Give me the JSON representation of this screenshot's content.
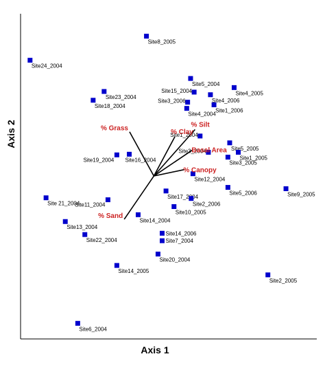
{
  "chart_data": {
    "type": "scatter",
    "xlabel": "Axis 1",
    "ylabel": "Axis 2",
    "xlim": [
      0,
      100
    ],
    "ylim": [
      0,
      100
    ],
    "grid": false,
    "colors": {
      "point": "#0000cc",
      "vector_label": "#cc2222",
      "axis": "#000000"
    },
    "points": [
      {
        "label": "Site8_2005",
        "x": 42.5,
        "y": 93.1
      },
      {
        "label": "Site24_2004",
        "x": 3.2,
        "y": 85.7
      },
      {
        "label": "Site5_2004",
        "x": 57.4,
        "y": 80.1
      },
      {
        "label": "Site4_2005",
        "x": 72.1,
        "y": 77.3
      },
      {
        "label": "Site23_2004",
        "x": 28.2,
        "y": 76.1
      },
      {
        "label": "Site15_2004",
        "x": 58.6,
        "y": 75.9
      },
      {
        "label": "Site4_2006",
        "x": 64.1,
        "y": 75.1
      },
      {
        "label": "Site18_2004",
        "x": 24.5,
        "y": 73.4
      },
      {
        "label": "Site3_2006",
        "x": 56.4,
        "y": 72.8
      },
      {
        "label": "Site1_2006",
        "x": 65.3,
        "y": 72.0
      },
      {
        "label": "Site4_2004",
        "x": 56.1,
        "y": 70.9
      },
      {
        "label": "Site1_2004",
        "x": 60.6,
        "y": 62.4
      },
      {
        "label": "Site5_2005",
        "x": 70.6,
        "y": 60.3
      },
      {
        "label": "Site3_2004",
        "x": 63.4,
        "y": 57.4
      },
      {
        "label": "Site1_2005",
        "x": 73.5,
        "y": 57.4
      },
      {
        "label": "Site3_2005",
        "x": 70.0,
        "y": 55.9
      },
      {
        "label": "Site19_2004",
        "x": 32.5,
        "y": 56.6
      },
      {
        "label": "Site16_2004",
        "x": 36.7,
        "y": 56.8
      },
      {
        "label": "Site12_2004",
        "x": 58.2,
        "y": 50.8
      },
      {
        "label": "Site17_2004",
        "x": 49.1,
        "y": 45.5
      },
      {
        "label": "Site5_2006",
        "x": 70.0,
        "y": 46.6
      },
      {
        "label": "Site9_2005",
        "x": 89.6,
        "y": 46.2
      },
      {
        "label": "Site2_2006",
        "x": 57.6,
        "y": 43.2
      },
      {
        "label": "Site 21_2004",
        "x": 8.6,
        "y": 43.4
      },
      {
        "label": "Site11_2004",
        "x": 29.5,
        "y": 42.8
      },
      {
        "label": "Site10_2005",
        "x": 51.8,
        "y": 40.7
      },
      {
        "label": "Site14_2004",
        "x": 39.7,
        "y": 38.2
      },
      {
        "label": "Site13_2004",
        "x": 15.1,
        "y": 36.1
      },
      {
        "label": "Site14_2006",
        "x": 47.8,
        "y": 32.5
      },
      {
        "label": "Site22_2004",
        "x": 21.7,
        "y": 32.1
      },
      {
        "label": "Site7_2004",
        "x": 47.8,
        "y": 30.2
      },
      {
        "label": "Site20_2004",
        "x": 46.4,
        "y": 26.1
      },
      {
        "label": "Site14_2005",
        "x": 32.5,
        "y": 22.6
      },
      {
        "label": "Site2_2005",
        "x": 83.5,
        "y": 19.7
      },
      {
        "label": "Site6_2004",
        "x": 19.3,
        "y": 4.8
      }
    ],
    "vectors": [
      {
        "label": "% Grass",
        "x": 36.8,
        "y": 63.7
      },
      {
        "label": "% Clay",
        "x": 52.1,
        "y": 62.2
      },
      {
        "label": "% Silt",
        "x": 58.9,
        "y": 64.4
      },
      {
        "label": "Basal Area",
        "x": 58.2,
        "y": 58.2
      },
      {
        "label": "% Canopy",
        "x": 55.4,
        "y": 52.1
      },
      {
        "label": "% Sand",
        "x": 35.0,
        "y": 36.8
      }
    ],
    "vector_origin": {
      "x": 45.0,
      "y": 50.1
    }
  }
}
